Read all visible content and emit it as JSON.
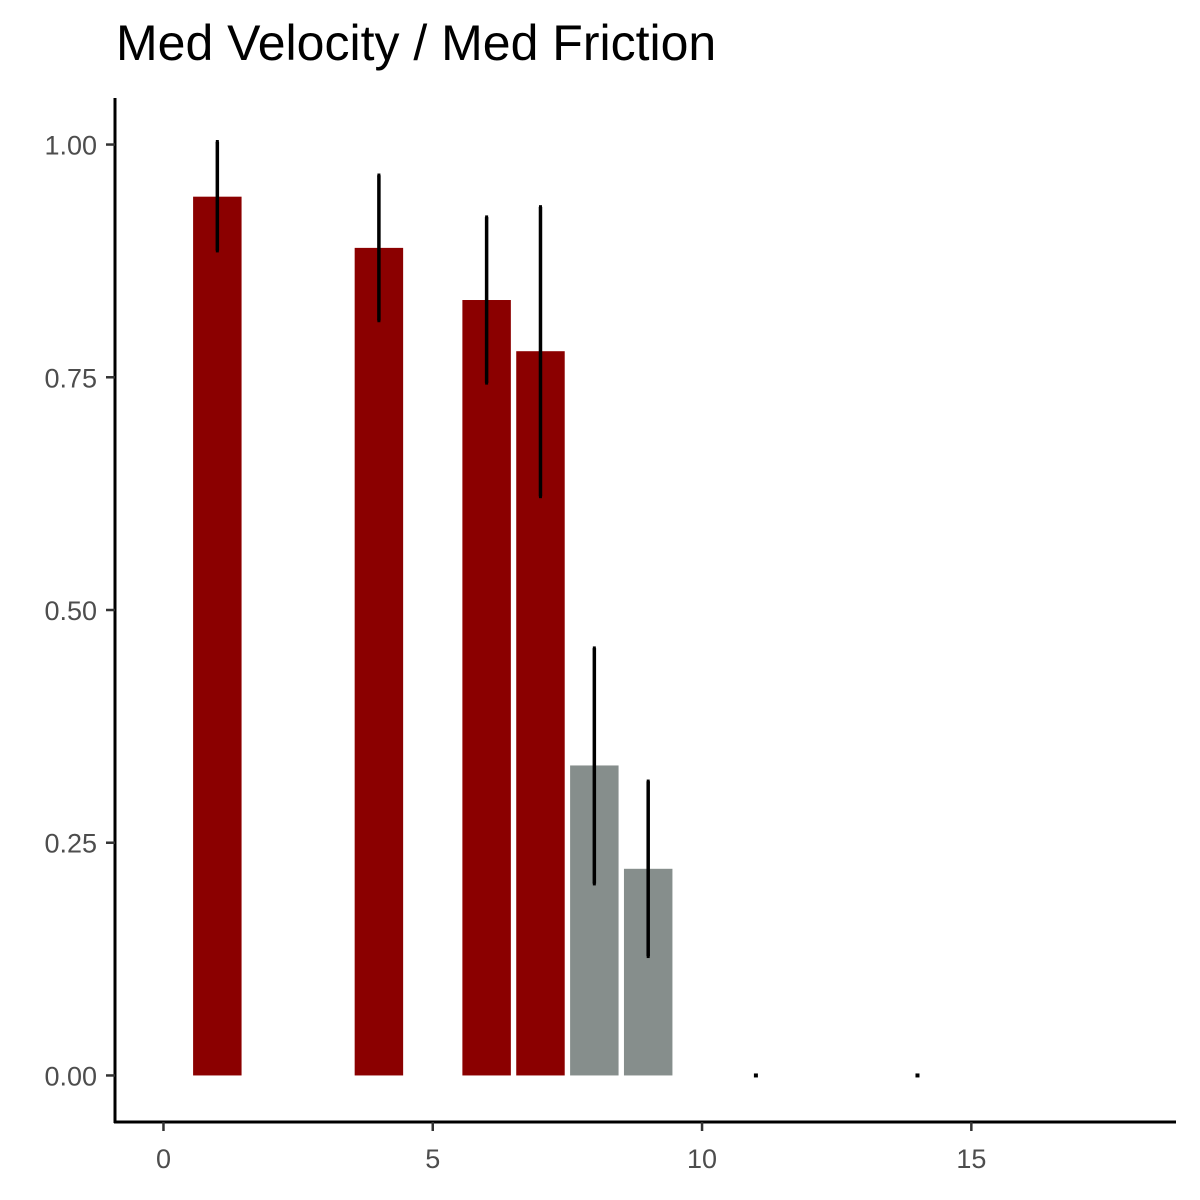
{
  "chart_data": {
    "type": "bar",
    "title": "Med Velocity / Med Friction",
    "xlabel": "",
    "ylabel": "",
    "xlim": [
      -0.9,
      18.8
    ],
    "ylim": [
      -0.05,
      1.05
    ],
    "x_ticks": [
      0,
      5,
      10,
      15
    ],
    "x_tick_labels": [
      "0",
      "5",
      "10",
      "15"
    ],
    "y_ticks": [
      0,
      0.25,
      0.5,
      0.75,
      1.0
    ],
    "y_tick_labels": [
      "0.00",
      "0.25",
      "0.50",
      "0.75",
      "1.00"
    ],
    "bar_width": 0.9,
    "grid": false,
    "legend": "none",
    "colors": {
      "significant": "#8b0000",
      "non_significant": "#868e8c",
      "error_bar": "#000000"
    },
    "bars": [
      {
        "x": 1,
        "value": 0.944,
        "error_low": 0.886,
        "error_high": 1.003,
        "group": "significant"
      },
      {
        "x": 4,
        "value": 0.889,
        "error_low": 0.811,
        "error_high": 0.967,
        "group": "significant"
      },
      {
        "x": 6,
        "value": 0.833,
        "error_low": 0.744,
        "error_high": 0.922,
        "group": "significant"
      },
      {
        "x": 7,
        "value": 0.778,
        "error_low": 0.622,
        "error_high": 0.933,
        "group": "significant"
      },
      {
        "x": 8,
        "value": 0.333,
        "error_low": 0.206,
        "error_high": 0.459,
        "group": "non_significant"
      },
      {
        "x": 9,
        "value": 0.222,
        "error_low": 0.128,
        "error_high": 0.316,
        "group": "non_significant"
      },
      {
        "x": 11,
        "value": 0.0,
        "error_low": 0.0,
        "error_high": 0.0,
        "group": "non_significant"
      },
      {
        "x": 14,
        "value": 0.0,
        "error_low": 0.0,
        "error_high": 0.0,
        "group": "non_significant"
      }
    ]
  }
}
